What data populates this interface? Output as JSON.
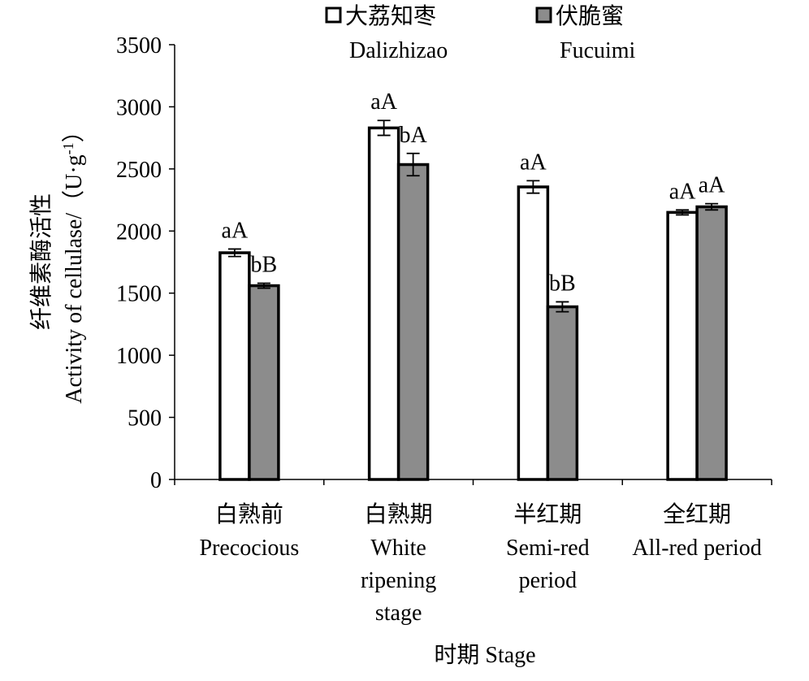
{
  "chart_data": {
    "type": "bar",
    "ylabel_cn": "纤维素酶活性",
    "ylabel_en": "Activity of cellulase/（U·g",
    "ylabel_sup": "-1",
    "ylabel_close": "）",
    "xlabel": "时期 Stage",
    "ylim": [
      0,
      3500
    ],
    "yticks": [
      "0",
      "500",
      "1000",
      "1500",
      "2000",
      "2500",
      "3000",
      "3500"
    ],
    "categories": [
      {
        "cn": "白熟前",
        "en": [
          "Precocious"
        ]
      },
      {
        "cn": "白熟期",
        "en": [
          "White",
          "ripening",
          "stage"
        ]
      },
      {
        "cn": "半红期",
        "en": [
          "Semi-red",
          "period"
        ]
      },
      {
        "cn": "全红期",
        "en": [
          "All-red period"
        ]
      }
    ],
    "series": [
      {
        "name_cn": "大荔知枣",
        "name_en": "Dalizhizao",
        "color": "#ffffff",
        "values": [
          1825,
          2830,
          2355,
          2150
        ],
        "errors": [
          30,
          60,
          50,
          20
        ],
        "labels": [
          "aA",
          "aA",
          "aA",
          "aA"
        ]
      },
      {
        "name_cn": "伏脆蜜",
        "name_en": "Fucuimi",
        "color": "#8c8c8c",
        "values": [
          1560,
          2535,
          1390,
          2195
        ],
        "errors": [
          20,
          90,
          40,
          25
        ],
        "labels": [
          "bB",
          "bA",
          "bB",
          "aA"
        ]
      }
    ],
    "legend_position": "top",
    "grid": false
  }
}
